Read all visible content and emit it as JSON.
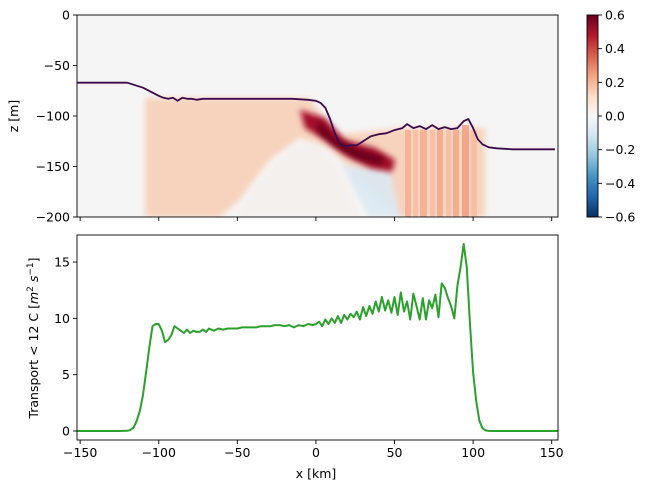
{
  "chart_data": [
    {
      "type": "heatmap",
      "ylabel": "z [m]",
      "xlim": [
        -152,
        154
      ],
      "ylim": [
        -200,
        0
      ],
      "yticks": [
        0,
        -50,
        -100,
        -150,
        -200
      ],
      "ytick_labels": [
        "0",
        "−50",
        "−100",
        "−150",
        "−200"
      ],
      "xticks": [
        -150,
        -100,
        -50,
        0,
        50,
        100,
        150
      ],
      "colorbar": {
        "colormap": "RdBu_r",
        "range": [
          -0.6,
          0.6
        ],
        "ticks": [
          0.6,
          0.4,
          0.2,
          0.0,
          -0.2,
          -0.4,
          -0.6
        ],
        "tick_labels": [
          "0.6",
          "0.4",
          "0.2",
          "0.0",
          "−0.2",
          "−0.4",
          "−0.6"
        ]
      },
      "isotherm_line": {
        "color": "#3d0a4d",
        "x": [
          -152,
          -120,
          -110,
          -100,
          -97,
          -94,
          -91,
          -88,
          -85,
          -82,
          -79,
          -76,
          -72,
          -65,
          -55,
          -45,
          -35,
          -25,
          -15,
          -5,
          0,
          3,
          6,
          9,
          12,
          15,
          18,
          22,
          26,
          30,
          35,
          40,
          45,
          50,
          55,
          58,
          62,
          66,
          70,
          74,
          78,
          82,
          86,
          90,
          94,
          97,
          100,
          103,
          106,
          110,
          115,
          125,
          140,
          152
        ],
        "z": [
          -67,
          -67,
          -72,
          -80,
          -82,
          -83,
          -82,
          -85,
          -82,
          -83,
          -83,
          -84,
          -83,
          -83,
          -83,
          -83,
          -83,
          -83,
          -83,
          -84,
          -85,
          -87,
          -92,
          -103,
          -117,
          -127,
          -130,
          -129,
          -129,
          -125,
          -120,
          -118,
          -117,
          -114,
          -112,
          -108,
          -112,
          -110,
          -113,
          -109,
          -113,
          -111,
          -113,
          -112,
          -105,
          -103,
          -112,
          -123,
          -128,
          -131,
          -132,
          -133,
          -133,
          -133
        ]
      },
      "background_value": 0.0,
      "notes_values": "positive ~0.15-0.25 between x=-107 and x=107 below z=-80; core ~0.6 near x=15-40, z=-125 to -150; weak negative ~-0.1 near x=20-50, z=-160 to -200"
    },
    {
      "type": "line",
      "xlabel": "x [km]",
      "ylabel": "Transport < 12 C [$m^2 s^{-1}$]",
      "xlim": [
        -152,
        154
      ],
      "ylim": [
        -0.8,
        17.4
      ],
      "xticks": [
        -150,
        -100,
        -50,
        0,
        50,
        100,
        150
      ],
      "xtick_labels": [
        "−150",
        "−100",
        "−50",
        "0",
        "50",
        "100",
        "150"
      ],
      "yticks": [
        0,
        5,
        10,
        15
      ],
      "ytick_labels": [
        "0",
        "5",
        "10",
        "15"
      ],
      "series": [
        {
          "color": "#2ca02c",
          "x": [
            -152,
            -125,
            -120,
            -118,
            -116,
            -114,
            -112,
            -110,
            -108,
            -106,
            -104,
            -102,
            -100,
            -98,
            -96,
            -94,
            -92,
            -90,
            -88,
            -86,
            -84,
            -82,
            -80,
            -78,
            -76,
            -74,
            -72,
            -70,
            -68,
            -65,
            -62,
            -59,
            -56,
            -53,
            -50,
            -47,
            -44,
            -41,
            -38,
            -35,
            -32,
            -29,
            -26,
            -23,
            -20,
            -17,
            -14,
            -11,
            -8,
            -5,
            -2,
            0,
            2,
            4,
            6,
            8,
            10,
            12,
            14,
            16,
            18,
            20,
            22,
            24,
            26,
            28,
            30,
            32,
            34,
            36,
            38,
            40,
            42,
            44,
            46,
            48,
            50,
            52,
            54,
            56,
            58,
            60,
            62,
            64,
            66,
            68,
            70,
            72,
            74,
            76,
            78,
            80,
            82,
            84,
            86,
            88,
            90,
            92,
            94,
            96,
            98,
            100,
            102,
            104,
            106,
            108,
            110,
            112,
            115,
            120,
            130,
            154
          ],
          "y": [
            0,
            0,
            0.02,
            0.1,
            0.3,
            0.9,
            1.8,
            3.2,
            5.3,
            7.4,
            9.3,
            9.5,
            9.5,
            8.9,
            7.9,
            8.1,
            8.5,
            9.3,
            9.1,
            8.9,
            8.7,
            9.0,
            8.7,
            8.9,
            8.8,
            8.8,
            9.0,
            8.8,
            9.1,
            8.9,
            9.1,
            9.0,
            9.1,
            9.1,
            9.1,
            9.2,
            9.2,
            9.2,
            9.2,
            9.3,
            9.3,
            9.3,
            9.4,
            9.4,
            9.3,
            9.4,
            9.2,
            9.4,
            9.3,
            9.5,
            9.4,
            9.5,
            9.7,
            9.3,
            9.9,
            9.5,
            10.0,
            9.6,
            10.2,
            9.6,
            10.3,
            9.9,
            10.4,
            10.1,
            10.6,
            9.9,
            11.0,
            10.2,
            11.1,
            10.4,
            11.5,
            10.6,
            11.9,
            10.7,
            11.6,
            10.5,
            11.9,
            10.3,
            12.3,
            10.6,
            11.5,
            9.9,
            12.2,
            11.1,
            9.9,
            11.8,
            9.9,
            11.6,
            10.9,
            12.1,
            10.1,
            13.1,
            12.7,
            11.8,
            11.1,
            10.0,
            12.9,
            14.5,
            16.6,
            14.5,
            9.5,
            5.2,
            2.6,
            0.9,
            0.25,
            0.05,
            0.01,
            0,
            0,
            0,
            0,
            0
          ]
        }
      ]
    }
  ]
}
